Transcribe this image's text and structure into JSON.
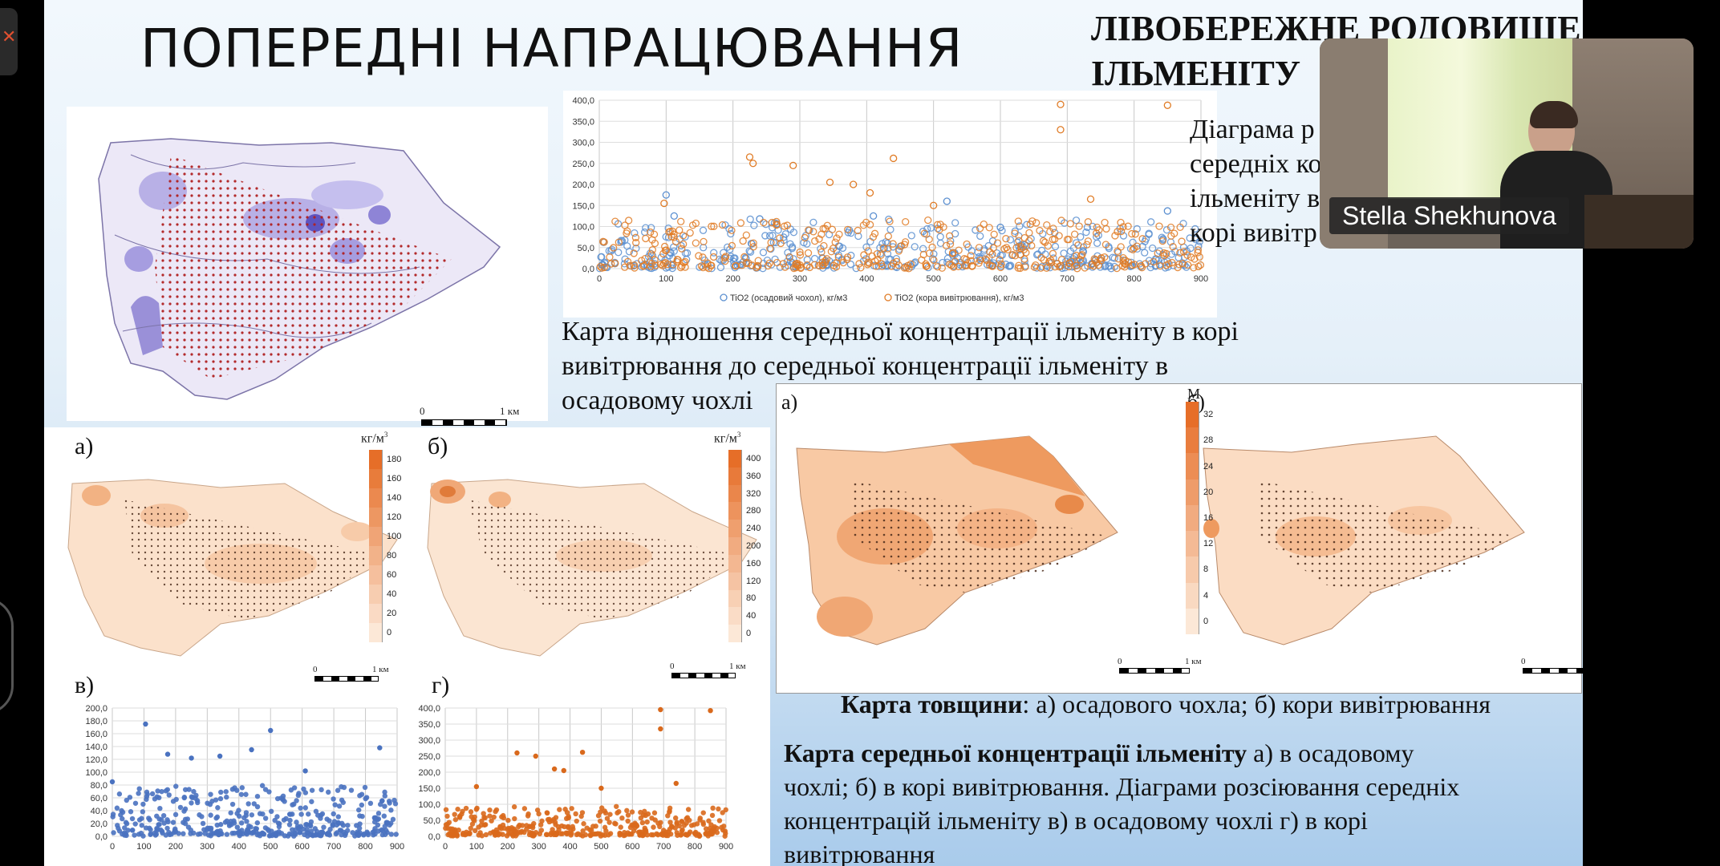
{
  "slide": {
    "title": "ПОПЕРЕДНІ НАПРАЦЮВАННЯ",
    "title_right_line1": "ЛІВОБЕРЕЖНЕ РОДОВИЩЕ",
    "title_right_line2": "ІЛЬМЕНІТУ",
    "diagram_caption_line1": "Діаграма р",
    "diagram_caption_line2": "середніх ко",
    "diagram_caption_line3": "ільменіту в",
    "diagram_caption_line4": "корі вивітр",
    "ratio_caption_line1": "Карта відношення середньої концентрації ільменіту в корі",
    "ratio_caption_line2": "вивітрювання до середньої концентрації ільменіту в",
    "ratio_caption_line3": "осадовому чохлі",
    "scale_top": "1 км",
    "scale_zero": "0",
    "label_a": "а)",
    "label_b": "б)",
    "label_v": "в)",
    "label_g": "г)",
    "conc_unit": "кг/м",
    "thick_unit": "М",
    "thickness_caption_bold": "Карта товщини",
    "thickness_caption_rest": ": а) осадового чохла; б) кори вивітрювання",
    "conc_caption_bold": "Карта середньої концентрації ільменіту",
    "conc_caption_rest": " а) в осадовому",
    "conc_caption_line2": "чохлі; б) в корі вивітрювання. Діаграми розсіювання середніх",
    "conc_caption_line3": "концентрацій ільменіту в) в осадовому чохлі г) в корі",
    "conc_caption_line4": "вивітрювання",
    "legend_conc_a": [
      "180",
      "160",
      "140",
      "120",
      "100",
      "80",
      "60",
      "40",
      "20",
      "0"
    ],
    "legend_conc_b": [
      "400",
      "360",
      "320",
      "280",
      "240",
      "200",
      "160",
      "120",
      "80",
      "40",
      "0"
    ],
    "legend_thick": [
      "32",
      "28",
      "24",
      "20",
      "16",
      "12",
      "8",
      "4",
      "0"
    ]
  },
  "webcam": {
    "participant_name": "Stella Shekhunova"
  },
  "chart_data": [
    {
      "id": "top-scatter",
      "type": "scatter",
      "title": "",
      "xlim": [
        0,
        900
      ],
      "ylim": [
        0,
        400
      ],
      "x_ticks": [
        "0",
        "100",
        "200",
        "300",
        "400",
        "500",
        "600",
        "700",
        "800",
        "900"
      ],
      "y_ticks": [
        "0,0",
        "50,0",
        "100,0",
        "150,0",
        "200,0",
        "250,0",
        "300,0",
        "350,0",
        "400,0"
      ],
      "legend": "bottom",
      "grid": true,
      "series": [
        {
          "name": "TiO2 (осадовий чохол), кг/м3",
          "color": "#5b8fd0",
          "marker": "hollow-circle",
          "highlights": [
            [
              100,
              175
            ],
            [
              112,
              125
            ],
            [
              240,
              118
            ],
            [
              410,
              125
            ],
            [
              520,
              160
            ],
            [
              600,
              98
            ],
            [
              850,
              137
            ]
          ]
        },
        {
          "name": "TiO2 (кора вивітрювання), кг/м3",
          "color": "#e07b25",
          "marker": "hollow-circle",
          "highlights": [
            [
              97,
              155
            ],
            [
              225,
              265
            ],
            [
              230,
              250
            ],
            [
              290,
              245
            ],
            [
              345,
              205
            ],
            [
              380,
              200
            ],
            [
              405,
              180
            ],
            [
              440,
              262
            ],
            [
              500,
              150
            ],
            [
              690,
              390
            ],
            [
              690,
              330
            ],
            [
              735,
              165
            ],
            [
              850,
              388
            ]
          ]
        }
      ]
    },
    {
      "id": "scatter-v",
      "type": "scatter",
      "xlim": [
        0,
        900
      ],
      "ylim": [
        0,
        200
      ],
      "x_ticks": [
        "0",
        "100",
        "200",
        "300",
        "400",
        "500",
        "600",
        "700",
        "800",
        "900"
      ],
      "y_ticks": [
        "0,0",
        "20,0",
        "40,0",
        "60,0",
        "80,0",
        "100,0",
        "120,0",
        "140,0",
        "160,0",
        "180,0",
        "200,0"
      ],
      "grid": true,
      "series": [
        {
          "color": "#4a72c0",
          "marker": "filled-circle",
          "highlights": [
            [
              105,
              175
            ],
            [
              175,
              128
            ],
            [
              500,
              165
            ],
            [
              340,
              125
            ],
            [
              440,
              135
            ],
            [
              845,
              138
            ],
            [
              610,
              102
            ],
            [
              0,
              85
            ],
            [
              250,
              122
            ]
          ]
        }
      ]
    },
    {
      "id": "scatter-g",
      "type": "scatter",
      "xlim": [
        0,
        900
      ],
      "ylim": [
        0,
        400
      ],
      "x_ticks": [
        "0",
        "100",
        "200",
        "300",
        "400",
        "500",
        "600",
        "700",
        "800",
        "900"
      ],
      "y_ticks": [
        "0,0",
        "50,0",
        "100,0",
        "150,0",
        "200,0",
        "250,0",
        "300,0",
        "350,0",
        "400,0"
      ],
      "grid": true,
      "series": [
        {
          "color": "#d9691c",
          "marker": "filled-circle",
          "highlights": [
            [
              690,
              395
            ],
            [
              690,
              335
            ],
            [
              850,
              392
            ],
            [
              230,
              260
            ],
            [
              290,
              250
            ],
            [
              440,
              262
            ],
            [
              350,
              210
            ],
            [
              380,
              205
            ],
            [
              100,
              155
            ],
            [
              500,
              150
            ],
            [
              740,
              165
            ]
          ]
        }
      ]
    }
  ],
  "colors": {
    "orange": "#e07b25",
    "blue": "#5b8fd0",
    "dark_blue": "#4a72c0",
    "slide_bg": "#e5f0f9"
  }
}
